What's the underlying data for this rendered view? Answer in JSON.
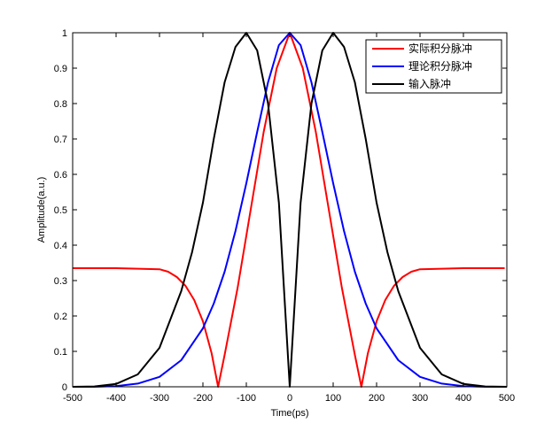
{
  "chart_data": {
    "type": "line",
    "xlabel": "Time(ps)",
    "ylabel": "Amplitude(a.u.)",
    "xlim": [
      -500,
      500
    ],
    "ylim": [
      0,
      1
    ],
    "xticks": [
      -500,
      -400,
      -300,
      -200,
      -100,
      0,
      100,
      200,
      300,
      400,
      500
    ],
    "yticks": [
      0,
      0.1,
      0.2,
      0.3,
      0.4,
      0.5,
      0.6,
      0.7,
      0.8,
      0.9,
      1
    ],
    "xtick_labels": [
      "-500",
      "-400",
      "-300",
      "-200",
      "-100",
      "0",
      "100",
      "200",
      "300",
      "400",
      "500"
    ],
    "ytick_labels": [
      "0",
      "0.1",
      "0.2",
      "0.3",
      "0.4",
      "0.5",
      "0.6",
      "0.7",
      "0.8",
      "0.9",
      "1"
    ],
    "grid": false,
    "legend_position": "top-right",
    "series": [
      {
        "name": "实际积分脉冲",
        "color": "#ff0000",
        "x": [
          -500,
          -400,
          -300,
          -280,
          -260,
          -240,
          -220,
          -200,
          -180,
          -165,
          -150,
          -120,
          -90,
          -60,
          -30,
          0,
          30,
          60,
          90,
          120,
          150,
          165,
          180,
          200,
          220,
          240,
          260,
          280,
          300,
          400,
          490,
          495
        ],
        "y": [
          0.335,
          0.335,
          0.332,
          0.325,
          0.31,
          0.285,
          0.245,
          0.185,
          0.095,
          0.0,
          0.09,
          0.28,
          0.5,
          0.72,
          0.9,
          1.0,
          0.9,
          0.72,
          0.5,
          0.28,
          0.09,
          0.0,
          0.095,
          0.185,
          0.245,
          0.285,
          0.31,
          0.325,
          0.332,
          0.335,
          0.335,
          0.335
        ]
      },
      {
        "name": "理论积分脉冲",
        "color": "#0000ff",
        "x": [
          -500,
          -450,
          -400,
          -350,
          -300,
          -250,
          -200,
          -175,
          -150,
          -125,
          -100,
          -75,
          -50,
          -25,
          0,
          25,
          50,
          75,
          100,
          125,
          150,
          175,
          200,
          250,
          300,
          350,
          400,
          450,
          500
        ],
        "y": [
          0.0,
          0.0,
          0.002,
          0.009,
          0.028,
          0.075,
          0.165,
          0.235,
          0.325,
          0.44,
          0.575,
          0.72,
          0.86,
          0.965,
          1.0,
          0.965,
          0.86,
          0.72,
          0.575,
          0.44,
          0.325,
          0.235,
          0.165,
          0.075,
          0.028,
          0.009,
          0.002,
          0.0,
          0.0
        ]
      },
      {
        "name": "输入脉冲",
        "color": "#000000",
        "x": [
          -500,
          -450,
          -400,
          -350,
          -300,
          -250,
          -225,
          -200,
          -175,
          -150,
          -125,
          -100,
          -75,
          -50,
          -25,
          0,
          25,
          50,
          75,
          100,
          125,
          150,
          175,
          200,
          225,
          250,
          300,
          350,
          400,
          450,
          500
        ],
        "y": [
          0.0,
          0.001,
          0.008,
          0.035,
          0.11,
          0.27,
          0.38,
          0.52,
          0.7,
          0.86,
          0.96,
          1.0,
          0.95,
          0.8,
          0.52,
          0.0,
          0.52,
          0.8,
          0.95,
          1.0,
          0.96,
          0.86,
          0.7,
          0.52,
          0.38,
          0.27,
          0.11,
          0.035,
          0.008,
          0.001,
          0.0
        ]
      }
    ]
  }
}
